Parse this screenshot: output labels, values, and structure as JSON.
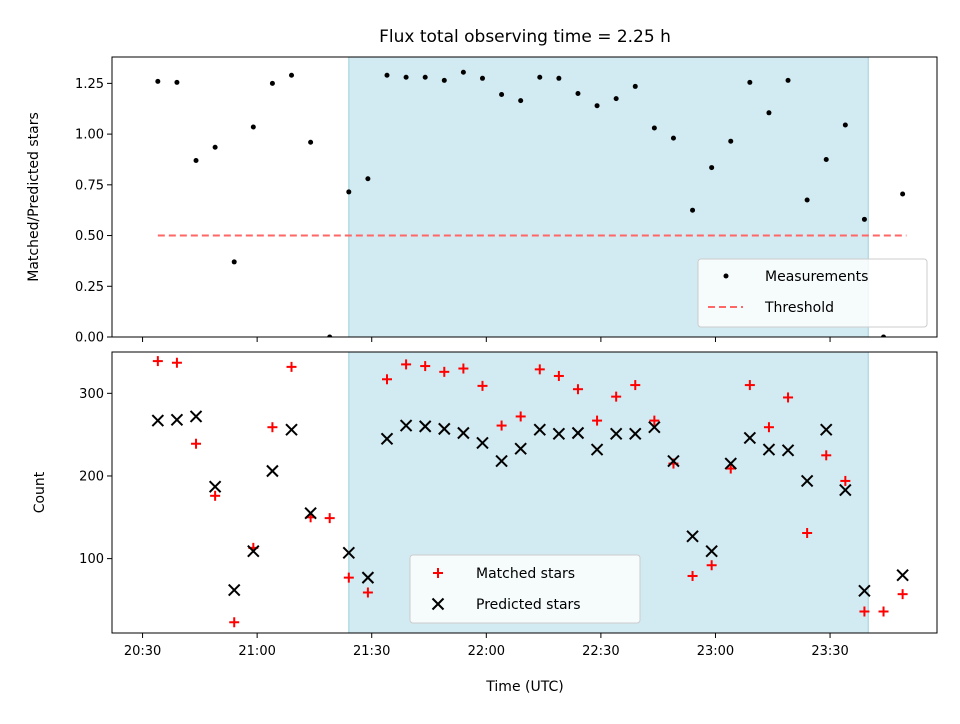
{
  "figure": {
    "title": "Flux total observing time = 2.25 h",
    "xlabel": "Time (UTC)"
  },
  "colors": {
    "shade": "#add8e6",
    "shade_edge": "#9ecfdc",
    "measurement": "#000000",
    "threshold": "#ff6666",
    "matched": "#ff0000",
    "predicted": "#000000"
  },
  "chart_data": [
    {
      "type": "scatter",
      "ylabel": "Matched/Predicted stars",
      "xlim": [
        "20:22",
        "23:58"
      ],
      "ylim": [
        0,
        1.38
      ],
      "yticks": [
        0.0,
        0.25,
        0.5,
        0.75,
        1.0,
        1.25
      ],
      "ytick_labels": [
        "0.00",
        "0.25",
        "0.50",
        "0.75",
        "1.00",
        "1.25"
      ],
      "xticks": [
        "20:30",
        "21:00",
        "21:30",
        "22:00",
        "22:30",
        "23:00",
        "23:30"
      ],
      "shaded_interval": [
        "21:24",
        "23:40"
      ],
      "legend": {
        "location": "lower right",
        "entries": [
          "Measurements",
          "Threshold"
        ]
      },
      "threshold": {
        "name": "Threshold",
        "value": 0.5,
        "x_range": [
          "20:34",
          "23:50"
        ]
      },
      "series": [
        {
          "name": "Measurements",
          "points": [
            [
              "20:34",
              1.26
            ],
            [
              "20:39",
              1.255
            ],
            [
              "20:44",
              0.87
            ],
            [
              "20:49",
              0.935
            ],
            [
              "20:54",
              0.37
            ],
            [
              "20:59",
              1.035
            ],
            [
              "21:04",
              1.25
            ],
            [
              "21:09",
              1.29
            ],
            [
              "21:14",
              0.96
            ],
            [
              "21:19",
              0.0
            ],
            [
              "21:24",
              0.715
            ],
            [
              "21:29",
              0.78
            ],
            [
              "21:34",
              1.29
            ],
            [
              "21:39",
              1.28
            ],
            [
              "21:44",
              1.28
            ],
            [
              "21:49",
              1.265
            ],
            [
              "21:54",
              1.305
            ],
            [
              "21:59",
              1.275
            ],
            [
              "22:04",
              1.195
            ],
            [
              "22:09",
              1.165
            ],
            [
              "22:14",
              1.28
            ],
            [
              "22:19",
              1.275
            ],
            [
              "22:24",
              1.2
            ],
            [
              "22:29",
              1.14
            ],
            [
              "22:34",
              1.175
            ],
            [
              "22:39",
              1.235
            ],
            [
              "22:44",
              1.03
            ],
            [
              "22:49",
              0.98
            ],
            [
              "22:54",
              0.625
            ],
            [
              "22:59",
              0.835
            ],
            [
              "23:04",
              0.965
            ],
            [
              "23:09",
              1.255
            ],
            [
              "23:14",
              1.105
            ],
            [
              "23:19",
              1.265
            ],
            [
              "23:24",
              0.675
            ],
            [
              "23:29",
              0.875
            ],
            [
              "23:34",
              1.045
            ],
            [
              "23:39",
              0.58
            ],
            [
              "23:44",
              0.0
            ],
            [
              "23:49",
              0.705
            ]
          ]
        }
      ]
    },
    {
      "type": "scatter",
      "ylabel": "Count",
      "xlabel": "Time (UTC)",
      "xlim": [
        "20:22",
        "23:58"
      ],
      "ylim": [
        10,
        350
      ],
      "yticks": [
        100,
        200,
        300
      ],
      "ytick_labels": [
        "100",
        "200",
        "300"
      ],
      "xticks": [
        "20:30",
        "21:00",
        "21:30",
        "22:00",
        "22:30",
        "23:00",
        "23:30"
      ],
      "shaded_interval": [
        "21:24",
        "23:40"
      ],
      "legend": {
        "location": "lower center",
        "entries": [
          "Matched stars",
          "Predicted stars"
        ]
      },
      "series": [
        {
          "name": "Matched stars",
          "marker": "+",
          "points": [
            [
              "20:34",
              339
            ],
            [
              "20:39",
              337
            ],
            [
              "20:44",
              239
            ],
            [
              "20:49",
              176
            ],
            [
              "20:54",
              23
            ],
            [
              "20:59",
              113
            ],
            [
              "21:04",
              259
            ],
            [
              "21:09",
              332
            ],
            [
              "21:14",
              150
            ],
            [
              "21:19",
              149
            ],
            [
              "21:24",
              77
            ],
            [
              "21:29",
              59
            ],
            [
              "21:34",
              317
            ],
            [
              "21:39",
              335
            ],
            [
              "21:44",
              333
            ],
            [
              "21:49",
              326
            ],
            [
              "21:54",
              330
            ],
            [
              "21:59",
              309
            ],
            [
              "22:04",
              261
            ],
            [
              "22:09",
              272
            ],
            [
              "22:14",
              329
            ],
            [
              "22:19",
              321
            ],
            [
              "22:24",
              305
            ],
            [
              "22:29",
              267
            ],
            [
              "22:34",
              296
            ],
            [
              "22:39",
              310
            ],
            [
              "22:44",
              267
            ],
            [
              "22:49",
              215
            ],
            [
              "22:54",
              79
            ],
            [
              "22:59",
              92
            ],
            [
              "23:04",
              209
            ],
            [
              "23:09",
              310
            ],
            [
              "23:14",
              259
            ],
            [
              "23:19",
              295
            ],
            [
              "23:24",
              131
            ],
            [
              "23:29",
              225
            ],
            [
              "23:34",
              194
            ],
            [
              "23:39",
              36
            ],
            [
              "23:44",
              36
            ],
            [
              "23:49",
              57
            ]
          ]
        },
        {
          "name": "Predicted stars",
          "marker": "x",
          "points": [
            [
              "20:34",
              267
            ],
            [
              "20:39",
              268
            ],
            [
              "20:44",
              272
            ],
            [
              "20:49",
              187
            ],
            [
              "20:54",
              62
            ],
            [
              "20:59",
              109
            ],
            [
              "21:04",
              206
            ],
            [
              "21:09",
              256
            ],
            [
              "21:14",
              155
            ],
            [
              "21:24",
              107
            ],
            [
              "21:29",
              77
            ],
            [
              "21:34",
              245
            ],
            [
              "21:39",
              261
            ],
            [
              "21:44",
              260
            ],
            [
              "21:49",
              257
            ],
            [
              "21:54",
              252
            ],
            [
              "21:59",
              240
            ],
            [
              "22:04",
              218
            ],
            [
              "22:09",
              233
            ],
            [
              "22:14",
              256
            ],
            [
              "22:19",
              251
            ],
            [
              "22:24",
              252
            ],
            [
              "22:29",
              232
            ],
            [
              "22:34",
              251
            ],
            [
              "22:39",
              251
            ],
            [
              "22:44",
              259
            ],
            [
              "22:49",
              218
            ],
            [
              "22:54",
              127
            ],
            [
              "22:59",
              109
            ],
            [
              "23:04",
              215
            ],
            [
              "23:09",
              246
            ],
            [
              "23:14",
              232
            ],
            [
              "23:19",
              231
            ],
            [
              "23:24",
              194
            ],
            [
              "23:29",
              256
            ],
            [
              "23:34",
              183
            ],
            [
              "23:39",
              61
            ],
            [
              "23:49",
              80
            ]
          ]
        }
      ]
    }
  ]
}
